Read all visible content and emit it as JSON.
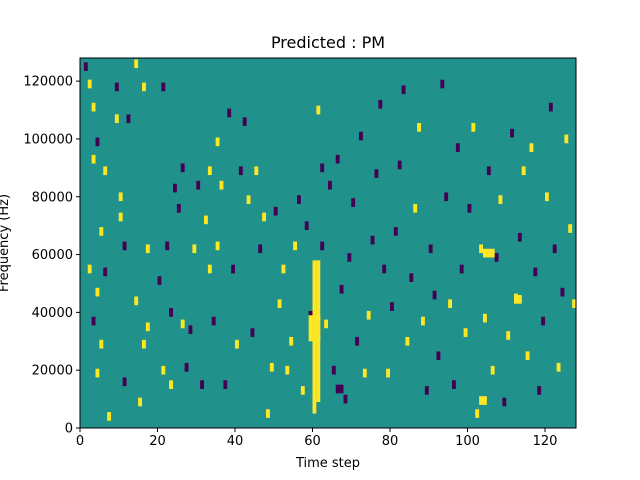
{
  "chart_data": {
    "type": "heatmap",
    "title": "Predicted : PM",
    "xlabel": "Time step",
    "ylabel": "Frequency (Hz)",
    "xlim": [
      0,
      128
    ],
    "ylim": [
      0,
      128000
    ],
    "xticks": [
      0,
      20,
      40,
      60,
      80,
      100,
      120
    ],
    "yticks": [
      0,
      20000,
      40000,
      60000,
      80000,
      100000,
      120000
    ],
    "xtick_labels": [
      "0",
      "20",
      "40",
      "60",
      "80",
      "100",
      "120"
    ],
    "ytick_labels": [
      "0",
      "20000",
      "40000",
      "60000",
      "80000",
      "100000",
      "120000"
    ],
    "colormap": "viridis",
    "background_color": "#21918c",
    "high_color": "#fde725",
    "low_color": "#440154",
    "levels": {
      "background": 0,
      "high": 1,
      "low": -1
    },
    "cells": [
      {
        "t": 1,
        "f": 125000,
        "v": -1
      },
      {
        "t": 2,
        "f": 119000,
        "v": 1
      },
      {
        "t": 3,
        "f": 111000,
        "v": 1
      },
      {
        "t": 3,
        "f": 93000,
        "v": 1
      },
      {
        "t": 4,
        "f": 99000,
        "v": -1
      },
      {
        "t": 5,
        "f": 68000,
        "v": 1
      },
      {
        "t": 6,
        "f": 89000,
        "v": 1
      },
      {
        "t": 2,
        "f": 55000,
        "v": 1
      },
      {
        "t": 4,
        "f": 47000,
        "v": 1
      },
      {
        "t": 3,
        "f": 37000,
        "v": -1
      },
      {
        "t": 4,
        "f": 19000,
        "v": 1
      },
      {
        "t": 5,
        "f": 29000,
        "v": 1
      },
      {
        "t": 7,
        "f": 4000,
        "v": 1
      },
      {
        "t": 6,
        "f": 54000,
        "v": -1
      },
      {
        "t": 9,
        "f": 118000,
        "v": -1
      },
      {
        "t": 9,
        "f": 107000,
        "v": 1
      },
      {
        "t": 10,
        "f": 80000,
        "v": 1
      },
      {
        "t": 10,
        "f": 73000,
        "v": 1
      },
      {
        "t": 11,
        "f": 63000,
        "v": -1
      },
      {
        "t": 11,
        "f": 16000,
        "v": -1
      },
      {
        "t": 12,
        "f": 107000,
        "v": -1
      },
      {
        "t": 14,
        "f": 126000,
        "v": 1
      },
      {
        "t": 14,
        "f": 44000,
        "v": 1
      },
      {
        "t": 15,
        "f": 9000,
        "v": 1
      },
      {
        "t": 16,
        "f": 118000,
        "v": 1
      },
      {
        "t": 16,
        "f": 29000,
        "v": 1
      },
      {
        "t": 17,
        "f": 35000,
        "v": 1
      },
      {
        "t": 17,
        "f": 62000,
        "v": 1
      },
      {
        "t": 20,
        "f": 51000,
        "v": -1
      },
      {
        "t": 21,
        "f": 118000,
        "v": -1
      },
      {
        "t": 21,
        "f": 20000,
        "v": 1
      },
      {
        "t": 22,
        "f": 63000,
        "v": -1
      },
      {
        "t": 23,
        "f": 40000,
        "v": -1
      },
      {
        "t": 23,
        "f": 15000,
        "v": 1
      },
      {
        "t": 24,
        "f": 83000,
        "v": -1
      },
      {
        "t": 25,
        "f": 76000,
        "v": -1
      },
      {
        "t": 26,
        "f": 90000,
        "v": -1
      },
      {
        "t": 26,
        "f": 36000,
        "v": 1
      },
      {
        "t": 27,
        "f": 21000,
        "v": -1
      },
      {
        "t": 28,
        "f": 34000,
        "v": -1
      },
      {
        "t": 29,
        "f": 62000,
        "v": 1
      },
      {
        "t": 30,
        "f": 84000,
        "v": -1
      },
      {
        "t": 31,
        "f": 15000,
        "v": -1
      },
      {
        "t": 32,
        "f": 72000,
        "v": 1
      },
      {
        "t": 33,
        "f": 55000,
        "v": 1
      },
      {
        "t": 33,
        "f": 89000,
        "v": 1
      },
      {
        "t": 34,
        "f": 37000,
        "v": -1
      },
      {
        "t": 35,
        "f": 99000,
        "v": 1
      },
      {
        "t": 35,
        "f": 63000,
        "v": 1
      },
      {
        "t": 36,
        "f": 84000,
        "v": 1
      },
      {
        "t": 37,
        "f": 15000,
        "v": -1
      },
      {
        "t": 38,
        "f": 109000,
        "v": -1
      },
      {
        "t": 39,
        "f": 55000,
        "v": -1
      },
      {
        "t": 40,
        "f": 29000,
        "v": 1
      },
      {
        "t": 41,
        "f": 89000,
        "v": -1
      },
      {
        "t": 42,
        "f": 106000,
        "v": -1
      },
      {
        "t": 43,
        "f": 79000,
        "v": 1
      },
      {
        "t": 44,
        "f": 33000,
        "v": -1
      },
      {
        "t": 45,
        "f": 89000,
        "v": 1
      },
      {
        "t": 46,
        "f": 62000,
        "v": -1
      },
      {
        "t": 47,
        "f": 73000,
        "v": 1
      },
      {
        "t": 48,
        "f": 5000,
        "v": 1
      },
      {
        "t": 49,
        "f": 21000,
        "v": 1
      },
      {
        "t": 50,
        "f": 75000,
        "v": -1
      },
      {
        "t": 51,
        "f": 43000,
        "v": 1
      },
      {
        "t": 52,
        "f": 55000,
        "v": 1
      },
      {
        "t": 53,
        "f": 20000,
        "v": 1
      },
      {
        "t": 54,
        "f": 30000,
        "v": 1
      },
      {
        "t": 55,
        "f": 63000,
        "v": 1
      },
      {
        "t": 56,
        "f": 79000,
        "v": -1
      },
      {
        "t": 57,
        "f": 13000,
        "v": 1
      },
      {
        "t": 58,
        "f": 70000,
        "v": -1
      },
      {
        "t": 59,
        "f": 39000,
        "v": -1
      },
      {
        "t": 60,
        "f": 7000,
        "v": -1
      },
      {
        "t": 61,
        "f": 110000,
        "v": 1
      },
      {
        "t": 62,
        "f": 90000,
        "v": -1
      },
      {
        "t": 62,
        "f": 63000,
        "v": -1
      },
      {
        "t": 63,
        "f": 36000,
        "v": 1
      },
      {
        "t": 64,
        "f": 84000,
        "v": -1
      },
      {
        "t": 65,
        "f": 20000,
        "v": -1
      },
      {
        "t": 66,
        "f": 93000,
        "v": -1
      },
      {
        "t": 67,
        "f": 48000,
        "v": -1
      },
      {
        "t": 68,
        "f": 10000,
        "v": -1
      },
      {
        "t": 69,
        "f": 59000,
        "v": -1
      },
      {
        "t": 70,
        "f": 78000,
        "v": -1
      },
      {
        "t": 71,
        "f": 30000,
        "v": -1
      },
      {
        "t": 72,
        "f": 101000,
        "v": -1
      },
      {
        "t": 73,
        "f": 19000,
        "v": 1
      },
      {
        "t": 74,
        "f": 39000,
        "v": 1
      },
      {
        "t": 75,
        "f": 65000,
        "v": -1
      },
      {
        "t": 76,
        "f": 88000,
        "v": -1
      },
      {
        "t": 77,
        "f": 112000,
        "v": -1
      },
      {
        "t": 78,
        "f": 55000,
        "v": -1
      },
      {
        "t": 79,
        "f": 19000,
        "v": 1
      },
      {
        "t": 80,
        "f": 42000,
        "v": -1
      },
      {
        "t": 81,
        "f": 68000,
        "v": -1
      },
      {
        "t": 82,
        "f": 91000,
        "v": -1
      },
      {
        "t": 83,
        "f": 117000,
        "v": -1
      },
      {
        "t": 84,
        "f": 30000,
        "v": 1
      },
      {
        "t": 85,
        "f": 52000,
        "v": -1
      },
      {
        "t": 86,
        "f": 76000,
        "v": 1
      },
      {
        "t": 87,
        "f": 104000,
        "v": 1
      },
      {
        "t": 88,
        "f": 37000,
        "v": 1
      },
      {
        "t": 89,
        "f": 13000,
        "v": -1
      },
      {
        "t": 90,
        "f": 62000,
        "v": -1
      },
      {
        "t": 91,
        "f": 46000,
        "v": -1
      },
      {
        "t": 92,
        "f": 25000,
        "v": -1
      },
      {
        "t": 93,
        "f": 119000,
        "v": -1
      },
      {
        "t": 94,
        "f": 80000,
        "v": -1
      },
      {
        "t": 95,
        "f": 43000,
        "v": 1
      },
      {
        "t": 96,
        "f": 15000,
        "v": -1
      },
      {
        "t": 97,
        "f": 97000,
        "v": -1
      },
      {
        "t": 98,
        "f": 55000,
        "v": -1
      },
      {
        "t": 99,
        "f": 33000,
        "v": 1
      },
      {
        "t": 100,
        "f": 76000,
        "v": -1
      },
      {
        "t": 101,
        "f": 104000,
        "v": 1
      },
      {
        "t": 102,
        "f": 5000,
        "v": 1
      },
      {
        "t": 103,
        "f": 62000,
        "v": 1
      },
      {
        "t": 104,
        "f": 38000,
        "v": 1
      },
      {
        "t": 105,
        "f": 89000,
        "v": -1
      },
      {
        "t": 106,
        "f": 20000,
        "v": 1
      },
      {
        "t": 107,
        "f": 59000,
        "v": -1
      },
      {
        "t": 108,
        "f": 79000,
        "v": 1
      },
      {
        "t": 109,
        "f": 9000,
        "v": -1
      },
      {
        "t": 110,
        "f": 32000,
        "v": 1
      },
      {
        "t": 111,
        "f": 102000,
        "v": -1
      },
      {
        "t": 112,
        "f": 45000,
        "v": 1
      },
      {
        "t": 113,
        "f": 66000,
        "v": -1
      },
      {
        "t": 114,
        "f": 89000,
        "v": 1
      },
      {
        "t": 115,
        "f": 25000,
        "v": 1
      },
      {
        "t": 116,
        "f": 97000,
        "v": 1
      },
      {
        "t": 117,
        "f": 54000,
        "v": -1
      },
      {
        "t": 118,
        "f": 13000,
        "v": -1
      },
      {
        "t": 119,
        "f": 37000,
        "v": -1
      },
      {
        "t": 120,
        "f": 80000,
        "v": 1
      },
      {
        "t": 121,
        "f": 111000,
        "v": -1
      },
      {
        "t": 122,
        "f": 62000,
        "v": -1
      },
      {
        "t": 123,
        "f": 21000,
        "v": 1
      },
      {
        "t": 124,
        "f": 47000,
        "v": -1
      },
      {
        "t": 125,
        "f": 100000,
        "v": 1
      },
      {
        "t": 126,
        "f": 69000,
        "v": 1
      },
      {
        "t": 127,
        "f": 43000,
        "v": 1
      }
    ],
    "bands": [
      {
        "t0": 60,
        "t1": 61,
        "f0": 5000,
        "f1": 58000,
        "v": 1
      },
      {
        "t0": 61,
        "t1": 62,
        "f0": 9000,
        "f1": 58000,
        "v": 1
      },
      {
        "t0": 59,
        "t1": 62,
        "f0": 30000,
        "f1": 39000,
        "v": 1
      },
      {
        "t0": 66,
        "t1": 68,
        "f0": 12000,
        "f1": 15000,
        "v": -1
      },
      {
        "t0": 104,
        "t1": 107,
        "f0": 59000,
        "f1": 62000,
        "v": 1
      },
      {
        "t0": 112,
        "t1": 114,
        "f0": 43000,
        "f1": 46000,
        "v": 1
      },
      {
        "t0": 103,
        "t1": 105,
        "f0": 8000,
        "f1": 11000,
        "v": 1
      }
    ]
  }
}
